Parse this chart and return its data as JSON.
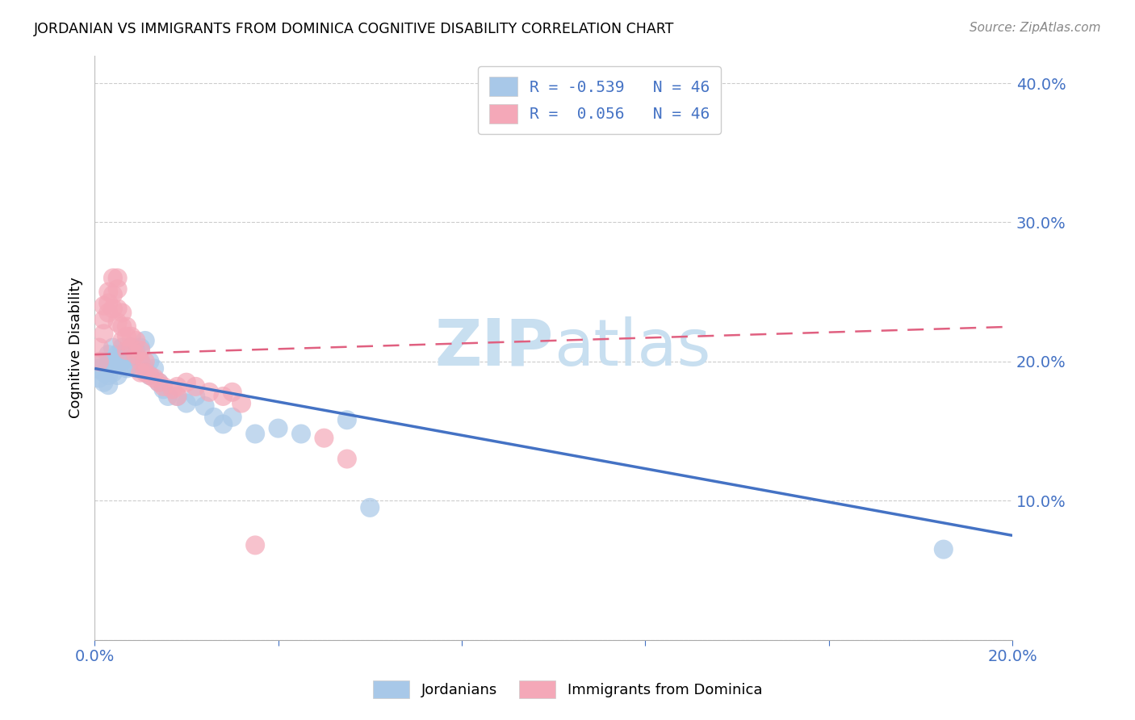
{
  "title": "JORDANIAN VS IMMIGRANTS FROM DOMINICA COGNITIVE DISABILITY CORRELATION CHART",
  "source": "Source: ZipAtlas.com",
  "ylabel_label": "Cognitive Disability",
  "xlim": [
    0.0,
    0.2
  ],
  "ylim": [
    0.0,
    0.42
  ],
  "x_ticks": [
    0.0,
    0.04,
    0.08,
    0.12,
    0.16,
    0.2
  ],
  "y_ticks": [
    0.0,
    0.1,
    0.2,
    0.3,
    0.4
  ],
  "blue_color": "#a8c8e8",
  "blue_line_color": "#4472c4",
  "pink_color": "#f4a8b8",
  "pink_line_color": "#e06080",
  "legend_R_blue": "-0.539",
  "legend_R_pink": "0.056",
  "legend_N": "46",
  "blue_scatter_x": [
    0.001,
    0.001,
    0.002,
    0.002,
    0.002,
    0.003,
    0.003,
    0.003,
    0.003,
    0.004,
    0.004,
    0.004,
    0.005,
    0.005,
    0.005,
    0.006,
    0.006,
    0.007,
    0.007,
    0.008,
    0.008,
    0.009,
    0.009,
    0.01,
    0.01,
    0.011,
    0.011,
    0.012,
    0.012,
    0.013,
    0.014,
    0.015,
    0.016,
    0.018,
    0.02,
    0.022,
    0.024,
    0.026,
    0.028,
    0.03,
    0.035,
    0.04,
    0.045,
    0.055,
    0.06,
    0.185
  ],
  "blue_scatter_y": [
    0.195,
    0.188,
    0.2,
    0.192,
    0.185,
    0.205,
    0.198,
    0.19,
    0.183,
    0.21,
    0.2,
    0.192,
    0.205,
    0.198,
    0.19,
    0.21,
    0.2,
    0.205,
    0.195,
    0.21,
    0.198,
    0.208,
    0.195,
    0.21,
    0.2,
    0.215,
    0.195,
    0.2,
    0.19,
    0.195,
    0.185,
    0.18,
    0.175,
    0.175,
    0.17,
    0.175,
    0.168,
    0.16,
    0.155,
    0.16,
    0.148,
    0.152,
    0.148,
    0.158,
    0.095,
    0.065
  ],
  "pink_scatter_x": [
    0.001,
    0.001,
    0.002,
    0.002,
    0.002,
    0.003,
    0.003,
    0.003,
    0.004,
    0.004,
    0.004,
    0.005,
    0.005,
    0.005,
    0.005,
    0.006,
    0.006,
    0.006,
    0.007,
    0.007,
    0.007,
    0.008,
    0.008,
    0.009,
    0.009,
    0.01,
    0.01,
    0.01,
    0.011,
    0.011,
    0.012,
    0.013,
    0.014,
    0.015,
    0.017,
    0.018,
    0.018,
    0.02,
    0.022,
    0.025,
    0.028,
    0.03,
    0.032,
    0.035,
    0.05,
    0.055
  ],
  "pink_scatter_y": [
    0.21,
    0.2,
    0.24,
    0.23,
    0.22,
    0.25,
    0.242,
    0.235,
    0.26,
    0.248,
    0.238,
    0.26,
    0.252,
    0.238,
    0.228,
    0.235,
    0.225,
    0.215,
    0.225,
    0.218,
    0.208,
    0.218,
    0.21,
    0.215,
    0.205,
    0.208,
    0.2,
    0.192,
    0.2,
    0.192,
    0.19,
    0.188,
    0.185,
    0.182,
    0.18,
    0.182,
    0.175,
    0.185,
    0.182,
    0.178,
    0.175,
    0.178,
    0.17,
    0.068,
    0.145,
    0.13
  ],
  "background_color": "#ffffff",
  "grid_color": "#cccccc",
  "watermark_color": "#c8dff0",
  "axis_label_color": "#4472c4",
  "tick_label_color": "#4472c4"
}
